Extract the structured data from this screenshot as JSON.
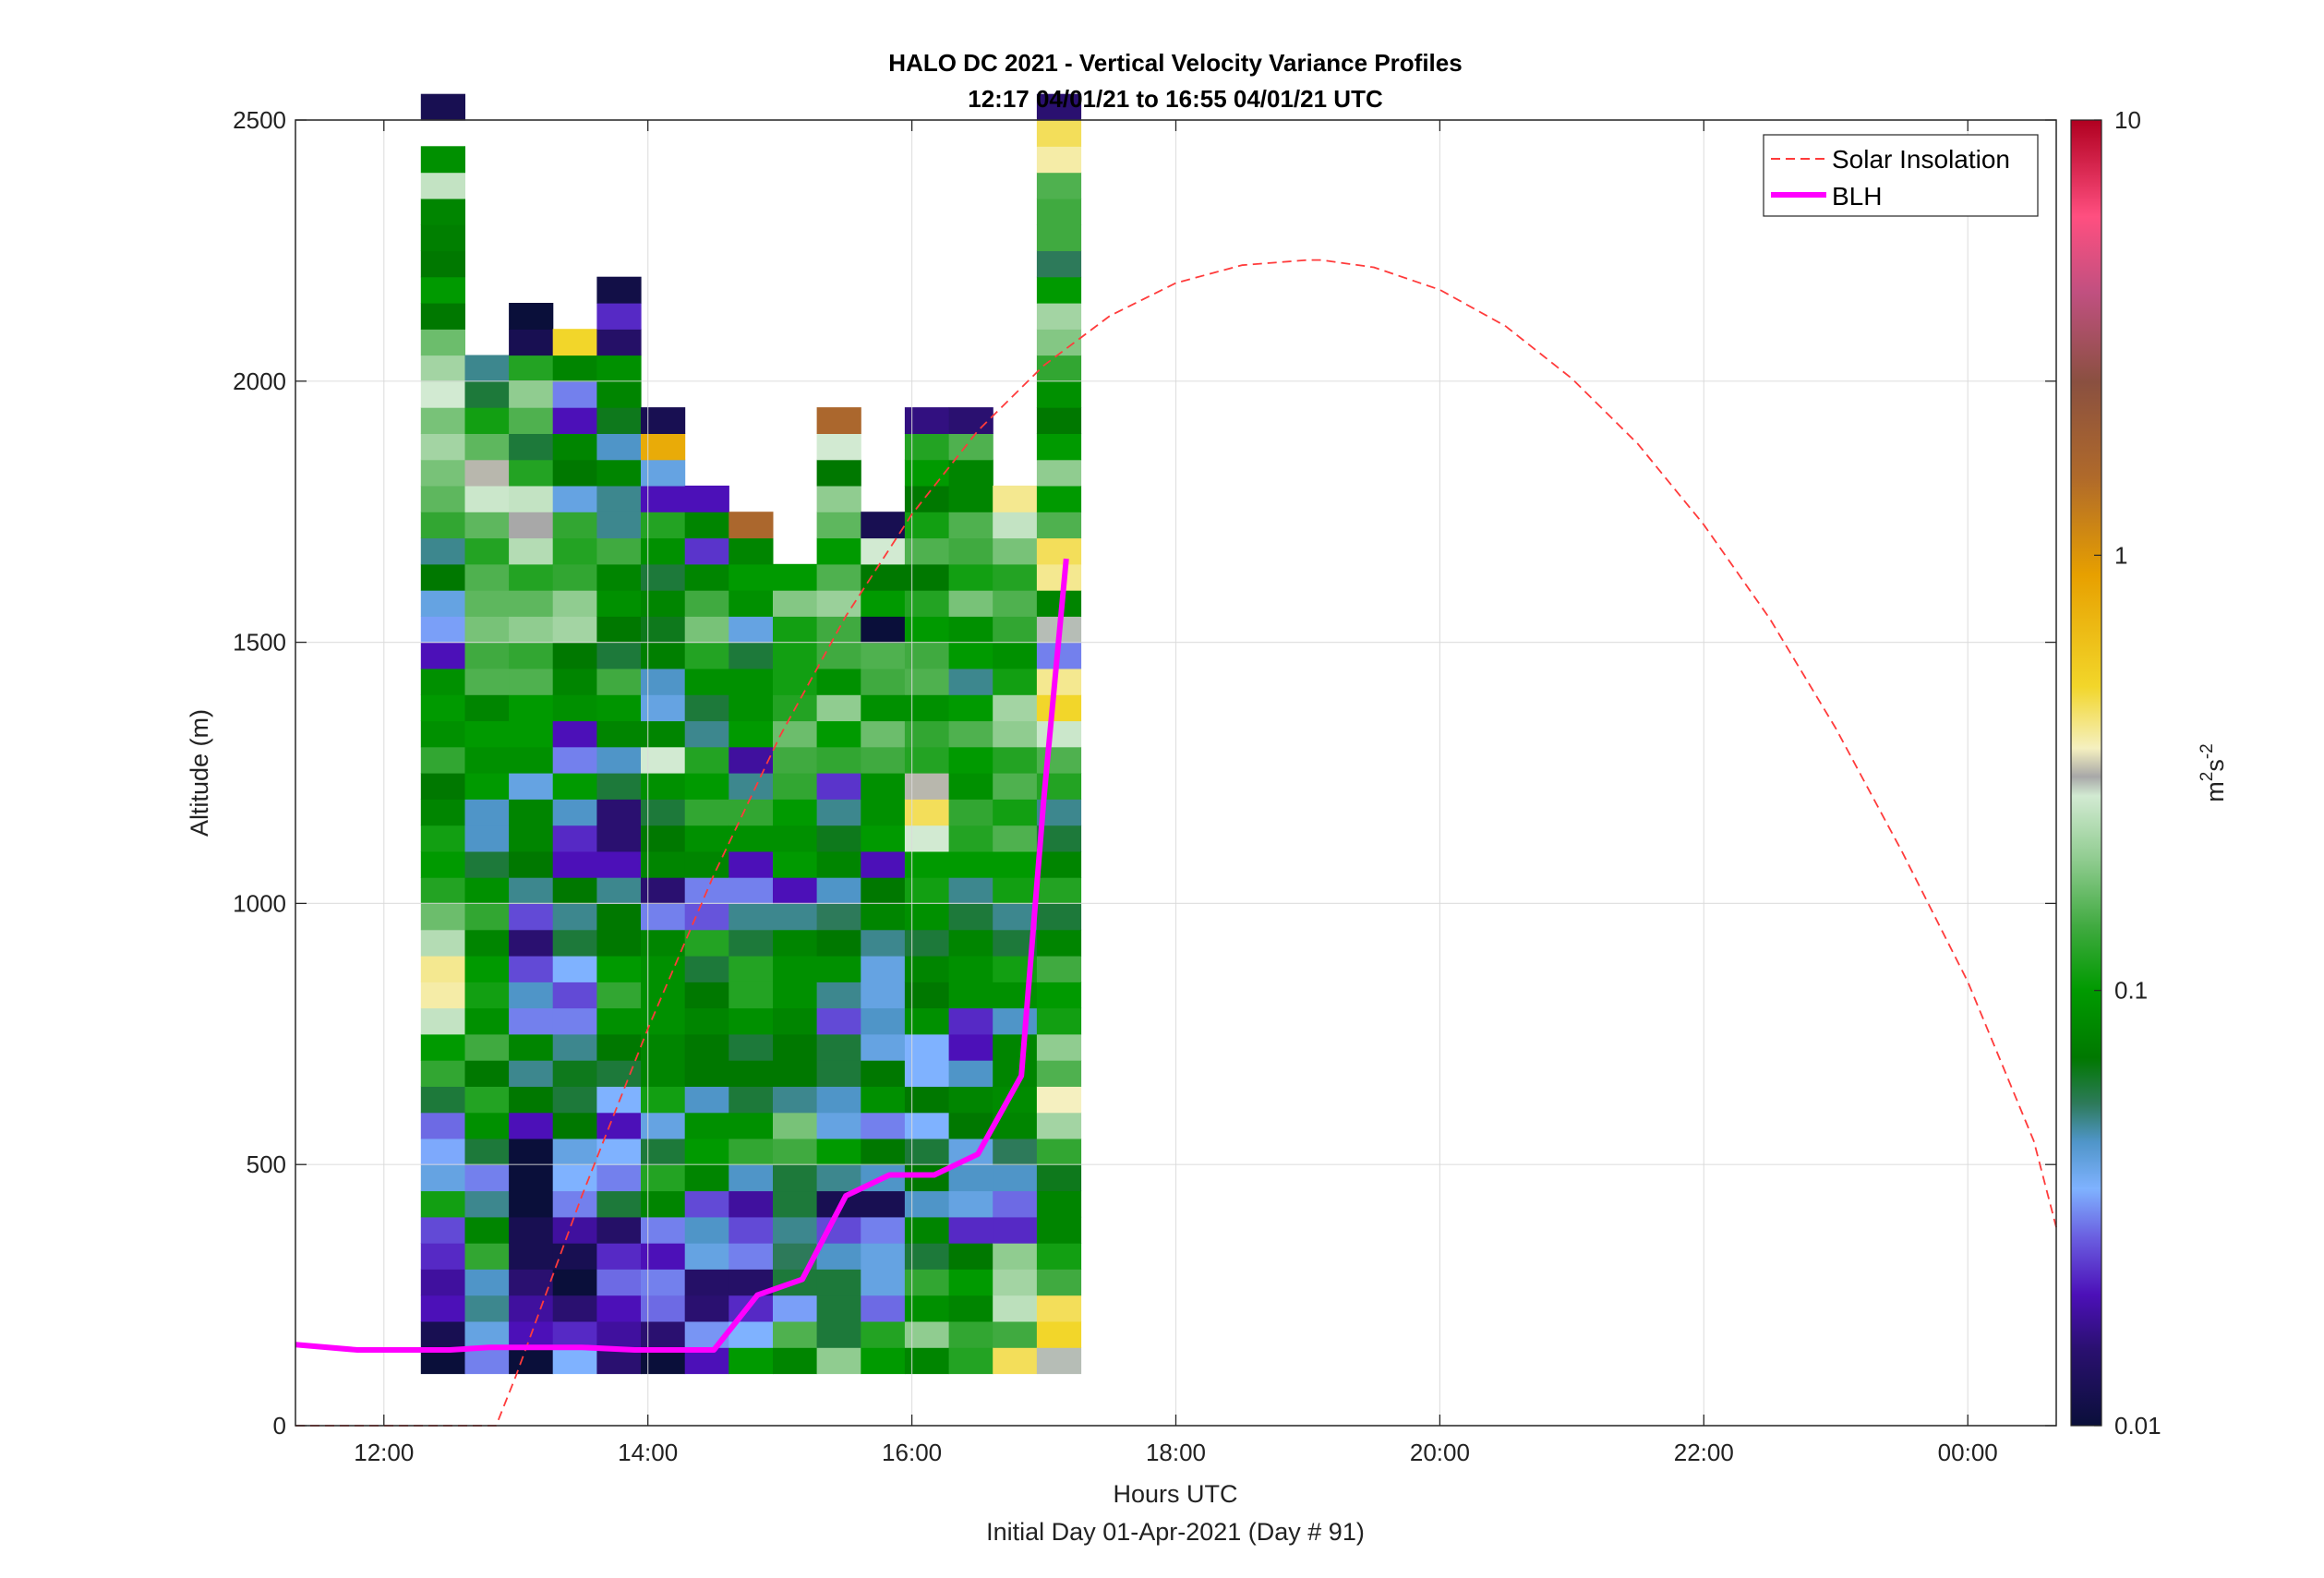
{
  "chart_data": {
    "type": "heatmap",
    "title": "HALO DC 2021 - Vertical Velocity Variance Profiles",
    "subtitle": "12:17 04/01/21 to 16:55 04/01/21  UTC",
    "xlabel": "Hours UTC",
    "xlabel2": "Initial Day 01-Apr-2021 (Day # 91)",
    "ylabel": "Altitude (m)",
    "xlim": [
      11.33,
      24.67
    ],
    "ylim": [
      0,
      2500
    ],
    "grid": true,
    "x_ticks": [
      {
        "value": 12,
        "label": "12:00"
      },
      {
        "value": 14,
        "label": "14:00"
      },
      {
        "value": 16,
        "label": "16:00"
      },
      {
        "value": 18,
        "label": "18:00"
      },
      {
        "value": 20,
        "label": "20:00"
      },
      {
        "value": 22,
        "label": "22:00"
      },
      {
        "value": 24,
        "label": "00:00"
      }
    ],
    "y_ticks": [
      {
        "value": 0,
        "label": "0"
      },
      {
        "value": 500,
        "label": "500"
      },
      {
        "value": 1000,
        "label": "1000"
      },
      {
        "value": 1500,
        "label": "1500"
      },
      {
        "value": 2000,
        "label": "2000"
      },
      {
        "value": 2500,
        "label": "2500"
      }
    ],
    "colorbar": {
      "label_base": "m",
      "label_exp1": "2",
      "label_mid": "s",
      "label_exp2": "-2",
      "scale": "log",
      "range": [
        0.01,
        10
      ],
      "ticks": [
        {
          "value": 0.01,
          "label": "0.01"
        },
        {
          "value": 0.1,
          "label": "0.1"
        },
        {
          "value": 1,
          "label": "1"
        },
        {
          "value": 10,
          "label": "10"
        }
      ],
      "stops": [
        {
          "value": 0.01,
          "color": "#0a0f3a"
        },
        {
          "value": 0.015,
          "color": "#2a1070"
        },
        {
          "value": 0.02,
          "color": "#4c10b8"
        },
        {
          "value": 0.027,
          "color": "#6a5ee0"
        },
        {
          "value": 0.035,
          "color": "#7fb2ff"
        },
        {
          "value": 0.045,
          "color": "#4f95c8"
        },
        {
          "value": 0.055,
          "color": "#2d7a5a"
        },
        {
          "value": 0.07,
          "color": "#007800"
        },
        {
          "value": 0.1,
          "color": "#009a00"
        },
        {
          "value": 0.14,
          "color": "#40aa40"
        },
        {
          "value": 0.2,
          "color": "#90cc90"
        },
        {
          "value": 0.28,
          "color": "#d2ead2"
        },
        {
          "value": 0.31,
          "color": "#a8a8a8"
        },
        {
          "value": 0.36,
          "color": "#f5f0c0"
        },
        {
          "value": 0.5,
          "color": "#f2d62a"
        },
        {
          "value": 0.9,
          "color": "#e7a000"
        },
        {
          "value": 1.5,
          "color": "#b06a2a"
        },
        {
          "value": 2.5,
          "color": "#8a5040"
        },
        {
          "value": 4,
          "color": "#c05080"
        },
        {
          "value": 6,
          "color": "#ff4f80"
        },
        {
          "value": 10,
          "color": "#b00020"
        }
      ]
    },
    "heatmap": {
      "x_start": 12.28,
      "x_step": 0.3333,
      "y_start": 100,
      "y_step": 50,
      "columns": [
        [
          0.01,
          0.012,
          0.02,
          0.018,
          0.022,
          0.025,
          0.11,
          0.04,
          0.034,
          0.028,
          0.06,
          0.13,
          0.1,
          0.26,
          0.38,
          0.4,
          0.24,
          0.17,
          0.12,
          0.1,
          0.11,
          0.08,
          0.07,
          0.13,
          0.09,
          0.1,
          0.09,
          0.02,
          0.033,
          0.04,
          0.07,
          0.05,
          0.13,
          0.16,
          0.18,
          0.22,
          0.18,
          0.28,
          0.22,
          0.17,
          0.07,
          0.1,
          0.07,
          0.075,
          0.08,
          0.26,
          0.09,
          null,
          0.012
        ],
        [
          0.03,
          0.04,
          0.05,
          0.045,
          0.13,
          0.08,
          0.05,
          0.03,
          0.06,
          0.09,
          0.12,
          0.07,
          0.14,
          0.09,
          0.11,
          0.1,
          0.08,
          0.13,
          0.09,
          0.06,
          0.045,
          0.045,
          0.1,
          0.09,
          0.1,
          0.08,
          0.15,
          0.14,
          0.18,
          0.16,
          0.15,
          0.12,
          0.16,
          0.27,
          0.32,
          0.16,
          0.11,
          0.06,
          0.05,
          null,
          null
        ],
        [
          0.01,
          0.02,
          0.018,
          0.015,
          0.012,
          0.012,
          0.01,
          0.01,
          0.01,
          0.02,
          0.07,
          0.05,
          0.08,
          0.03,
          0.045,
          0.025,
          0.015,
          0.025,
          0.05,
          0.07,
          0.08,
          0.08,
          0.04,
          0.09,
          0.1,
          0.1,
          0.15,
          0.13,
          0.2,
          0.16,
          0.12,
          0.24,
          0.31,
          0.26,
          0.12,
          0.06,
          0.15,
          0.2,
          0.12,
          0.012,
          0.01
        ],
        [
          0.035,
          0.022,
          0.015,
          0.01,
          0.012,
          0.018,
          0.03,
          0.035,
          0.04,
          0.07,
          0.06,
          0.065,
          0.05,
          0.03,
          0.025,
          0.035,
          0.06,
          0.05,
          0.07,
          0.02,
          0.022,
          0.045,
          0.1,
          0.03,
          0.02,
          0.09,
          0.08,
          0.07,
          0.22,
          0.2,
          0.13,
          0.12,
          0.13,
          0.04,
          0.07,
          0.08,
          0.02,
          0.03,
          0.08,
          0.5,
          null,
          null
        ],
        [
          0.015,
          0.018,
          0.02,
          0.028,
          0.022,
          0.014,
          0.06,
          0.03,
          0.035,
          0.02,
          0.035,
          0.06,
          0.07,
          0.09,
          0.13,
          0.1,
          0.07,
          0.07,
          0.05,
          0.02,
          0.015,
          0.015,
          0.06,
          0.045,
          0.08,
          0.095,
          0.14,
          0.06,
          0.07,
          0.09,
          0.08,
          0.14,
          0.05,
          0.05,
          0.08,
          0.045,
          0.065,
          0.08,
          0.09,
          0.014,
          0.022,
          0.011
        ],
        [
          0.01,
          0.015,
          0.028,
          0.03,
          0.02,
          0.03,
          0.08,
          0.12,
          0.06,
          0.04,
          0.11,
          0.08,
          0.08,
          0.09,
          0.09,
          0.09,
          0.08,
          0.03,
          0.015,
          0.08,
          0.07,
          0.06,
          0.09,
          0.28,
          0.08,
          0.04,
          0.045,
          0.075,
          0.065,
          0.08,
          0.06,
          0.09,
          0.12,
          0.02,
          0.04,
          0.8,
          0.012,
          null
        ],
        [
          0.02,
          0.032,
          0.015,
          0.014,
          0.04,
          0.045,
          0.025,
          0.08,
          0.1,
          0.09,
          0.045,
          0.07,
          0.07,
          0.08,
          0.07,
          0.06,
          0.12,
          0.026,
          0.03,
          0.08,
          0.09,
          0.13,
          0.1,
          0.12,
          0.05,
          0.06,
          0.09,
          0.12,
          0.18,
          0.14,
          0.08,
          0.023,
          0.08,
          0.02,
          null
        ],
        [
          0.1,
          0.035,
          0.022,
          0.014,
          0.03,
          0.025,
          0.018,
          0.045,
          0.13,
          0.09,
          0.06,
          0.07,
          0.06,
          0.09,
          0.12,
          0.12,
          0.06,
          0.05,
          0.03,
          0.02,
          0.09,
          0.13,
          0.05,
          0.018,
          0.1,
          0.09,
          0.09,
          0.06,
          0.04,
          0.09,
          0.1,
          0.08,
          1.6
        ],
        [
          0.08,
          0.15,
          0.033,
          0.06,
          0.055,
          0.05,
          0.06,
          0.06,
          0.14,
          0.18,
          0.05,
          0.07,
          0.07,
          0.08,
          0.09,
          0.09,
          0.08,
          0.05,
          0.02,
          0.1,
          0.09,
          0.1,
          0.13,
          0.14,
          0.17,
          0.12,
          0.11,
          0.11,
          0.11,
          0.19,
          0.1,
          null
        ],
        [
          0.2,
          0.06,
          0.06,
          0.06,
          0.045,
          0.025,
          0.012,
          0.05,
          0.1,
          0.04,
          0.045,
          0.06,
          0.06,
          0.025,
          0.05,
          0.09,
          0.07,
          0.055,
          0.045,
          0.08,
          0.065,
          0.05,
          0.023,
          0.13,
          0.1,
          0.2,
          0.09,
          0.14,
          0.14,
          0.21,
          0.15,
          0.1,
          0.16,
          0.2,
          0.07,
          0.28,
          1.6
        ],
        [
          0.1,
          0.12,
          0.028,
          0.04,
          0.04,
          0.03,
          0.012,
          0.045,
          0.07,
          0.03,
          0.09,
          0.07,
          0.04,
          0.045,
          0.04,
          0.04,
          0.05,
          0.08,
          0.07,
          0.02,
          0.1,
          0.09,
          0.09,
          0.14,
          0.17,
          0.09,
          0.14,
          0.15,
          0.01,
          0.1,
          0.07,
          0.28,
          0.012
        ],
        [
          0.08,
          0.2,
          0.09,
          0.13,
          0.06,
          0.08,
          0.045,
          0.07,
          0.06,
          0.035,
          0.07,
          0.035,
          0.035,
          0.09,
          0.07,
          0.08,
          0.06,
          0.09,
          0.11,
          0.1,
          0.28,
          0.45,
          0.32,
          0.12,
          0.13,
          0.09,
          0.15,
          0.14,
          0.1,
          0.12,
          0.07,
          0.15,
          0.11,
          0.07,
          0.1,
          0.12,
          0.016
        ],
        [
          0.12,
          0.13,
          0.08,
          0.1,
          0.07,
          0.022,
          0.04,
          0.045,
          0.04,
          0.07,
          0.08,
          0.045,
          0.02,
          0.022,
          0.09,
          0.09,
          0.08,
          0.06,
          0.05,
          0.1,
          0.12,
          0.13,
          0.09,
          0.1,
          0.15,
          0.1,
          0.05,
          0.1,
          0.09,
          0.18,
          0.11,
          0.14,
          0.15,
          0.08,
          0.08,
          0.15,
          0.015
        ],
        [
          0.45,
          0.14,
          0.25,
          0.22,
          0.2,
          0.022,
          0.028,
          0.045,
          0.055,
          0.08,
          0.085,
          0.08,
          0.08,
          0.045,
          0.09,
          0.11,
          0.06,
          0.05,
          0.11,
          0.1,
          0.15,
          0.11,
          0.15,
          0.12,
          0.2,
          0.22,
          0.11,
          0.09,
          0.13,
          0.15,
          0.12,
          0.18,
          0.26,
          0.4
        ],
        [
          0.3,
          0.5,
          0.45,
          0.14,
          0.11,
          0.08,
          0.08,
          0.065,
          0.13,
          0.22,
          0.36,
          0.15,
          0.2,
          0.11,
          0.1,
          0.14,
          0.08,
          0.06,
          0.12,
          0.08,
          0.06,
          0.05,
          0.12,
          0.15,
          0.27,
          0.5,
          0.4,
          0.03,
          0.3,
          0.08,
          0.4,
          0.45,
          0.15,
          0.1,
          0.2,
          0.1,
          0.07,
          0.09,
          0.13,
          0.19,
          0.22,
          0.1,
          0.055,
          0.14,
          0.14,
          0.15,
          0.38,
          0.45,
          0.015
        ]
      ]
    },
    "series": [
      {
        "name": "Solar Insolation",
        "style": "dashed",
        "color": "#ff3b3b",
        "x": [
          11.33,
          11.5,
          12.0,
          12.5,
          12.8,
          12.85,
          13.0,
          13.5,
          14.0,
          14.5,
          15.0,
          15.5,
          16.0,
          16.5,
          17.0,
          17.5,
          18.0,
          18.5,
          19.0,
          19.1,
          19.5,
          20.0,
          20.5,
          21.0,
          21.5,
          22.0,
          22.5,
          23.0,
          23.5,
          24.0,
          24.5,
          24.67
        ],
        "y": [
          0,
          0,
          0,
          0,
          0,
          0,
          95,
          440,
          760,
          1055,
          1320,
          1550,
          1745,
          1905,
          2030,
          2125,
          2188,
          2222,
          2232,
          2232,
          2218,
          2175,
          2105,
          2005,
          1880,
          1725,
          1545,
          1335,
          1100,
          850,
          545,
          380
        ]
      },
      {
        "name": "BLH",
        "style": "solid",
        "color": "#ff00ff",
        "x": [
          11.33,
          11.8,
          12.5,
          12.8,
          13.1,
          13.5,
          13.9,
          14.5,
          14.83,
          15.17,
          15.5,
          15.83,
          16.17,
          16.5,
          16.83,
          17.0,
          17.17
        ],
        "y": [
          155,
          145,
          145,
          150,
          150,
          150,
          145,
          145,
          250,
          280,
          440,
          480,
          480,
          520,
          670,
          1200,
          1660
        ]
      }
    ]
  }
}
